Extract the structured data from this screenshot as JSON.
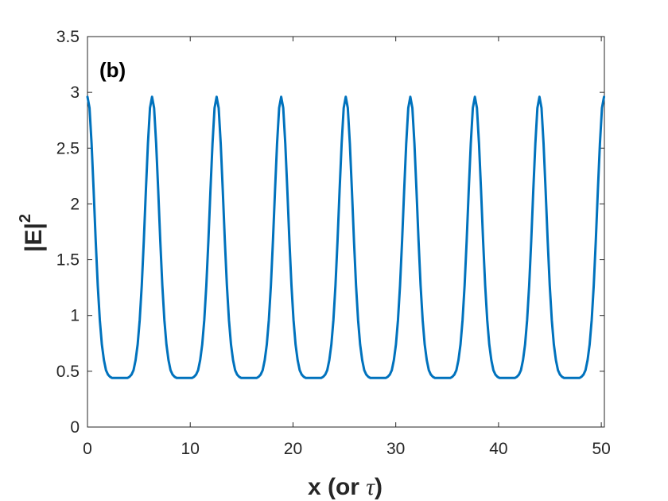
{
  "chart_data": {
    "type": "line",
    "panel_label": "(b)",
    "xlabel_text": "x (or ",
    "xlabel_symbol": "τ",
    "xlabel_close": ")",
    "ylabel_base": "|E|",
    "ylabel_exp": "2",
    "xlim": [
      0,
      50.3
    ],
    "ylim": [
      0,
      3.5
    ],
    "xticks": [
      0,
      10,
      20,
      30,
      40,
      50
    ],
    "yticks": [
      0,
      0.5,
      1,
      1.5,
      2,
      2.5,
      3,
      3.5
    ],
    "xtick_labels": [
      "0",
      "10",
      "20",
      "30",
      "40",
      "50"
    ],
    "ytick_labels": [
      "0",
      "0.5",
      "1",
      "1.5",
      "2",
      "2.5",
      "3",
      "3.5"
    ],
    "grid": false,
    "series": [
      {
        "color": "#0072BD",
        "x": [
          0,
          0.2,
          0.4,
          0.6,
          0.8,
          1.0,
          1.2,
          1.4,
          1.6,
          1.8,
          2.0,
          2.2,
          2.4,
          2.6,
          2.8,
          3.0,
          3.142,
          3.3,
          3.5,
          3.7,
          3.9,
          4.083,
          4.283,
          4.483,
          4.683,
          4.883,
          5.083,
          5.283,
          5.483,
          5.683,
          5.883,
          6.083,
          6.283
        ],
        "y": [
          2.96,
          2.86,
          2.54,
          2.12,
          1.67,
          1.27,
          0.96,
          0.74,
          0.6,
          0.51,
          0.47,
          0.45,
          0.44,
          0.44,
          0.44,
          0.44,
          0.44,
          0.44,
          0.44,
          0.44,
          0.44,
          0.45,
          0.47,
          0.51,
          0.6,
          0.74,
          0.96,
          1.27,
          1.67,
          2.12,
          2.54,
          2.86,
          2.96
        ],
        "period": 6.2832,
        "repeat_to": 50.3
      }
    ]
  }
}
